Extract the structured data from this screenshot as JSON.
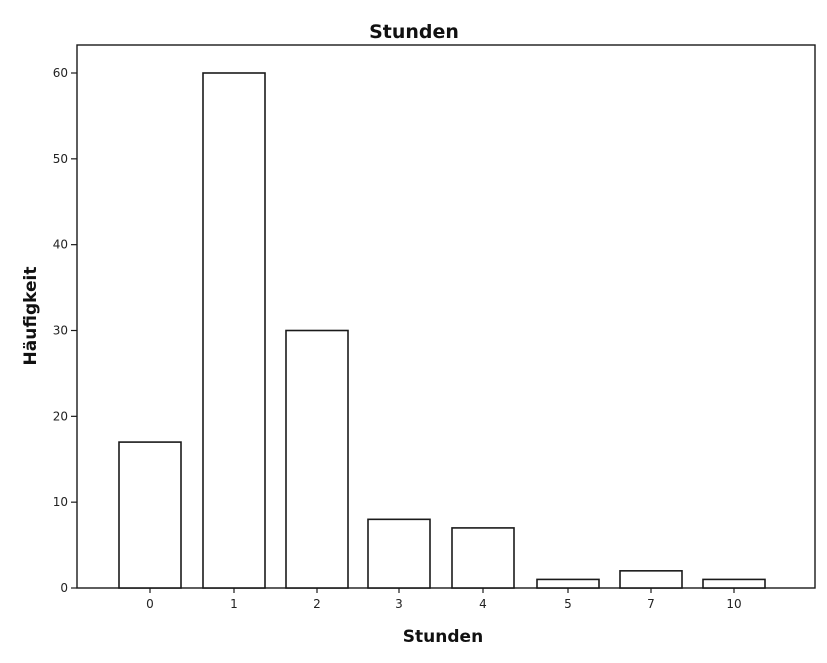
{
  "chart_data": {
    "type": "bar",
    "title": "Stunden",
    "xlabel": "Stunden",
    "ylabel": "Häufigkeit",
    "categories": [
      "0",
      "1",
      "2",
      "3",
      "4",
      "5",
      "7",
      "10"
    ],
    "values": [
      17,
      60,
      30,
      8,
      7,
      1,
      2,
      1
    ],
    "ylim": [
      0,
      60
    ],
    "yticks": [
      0,
      10,
      20,
      30,
      40,
      50,
      60
    ],
    "grid": false,
    "legend": "none",
    "bar_fill": "#ffffff",
    "bar_edge": "#1a1a1a"
  }
}
